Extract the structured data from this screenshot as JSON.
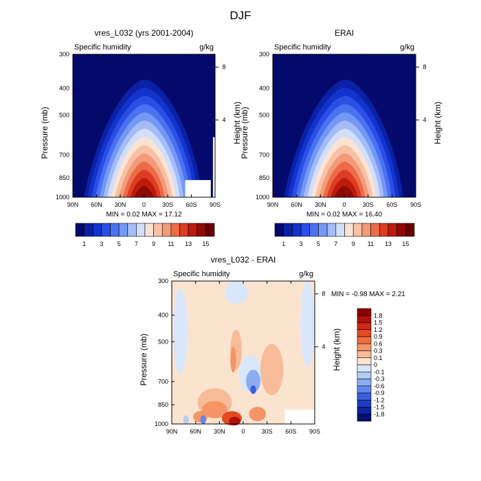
{
  "figure_title": "DJF",
  "chart_data": [
    {
      "type": "heatmap",
      "title": "vres_L032 (yrs 2001-2004)",
      "subtitle_left": "Specific humidity",
      "subtitle_right": "g/kg",
      "ylabel": "Pressure (mb)",
      "ylabel_right": "Height (km)",
      "x_ticks": [
        "90N",
        "60N",
        "30N",
        "0",
        "30S",
        "60S",
        "90S"
      ],
      "y_ticks": [
        "300",
        "400",
        "500",
        "700",
        "850",
        "1000"
      ],
      "y_ticks_right": [
        "8",
        "4"
      ],
      "ylim": [
        1000,
        300
      ],
      "min_max_text": "MIN =  0.02  MAX =  17.12",
      "colorbar": {
        "orientation": "horizontal",
        "labels": [
          "1",
          "3",
          "5",
          "7",
          "9",
          "11",
          "13",
          "15"
        ],
        "colors": [
          "#040a6b",
          "#0a21a6",
          "#1233cc",
          "#2a4ee6",
          "#4a72f0",
          "#7398f5",
          "#a4bcf8",
          "#d2dffb",
          "#fbe3d3",
          "#f8c0a5",
          "#f39a79",
          "#ec6c4a",
          "#dc3c22",
          "#bb1a0c",
          "#8e0b04",
          "#680000"
        ]
      }
    },
    {
      "type": "heatmap",
      "title": "ERAI",
      "subtitle_left": "Specific humidity",
      "subtitle_right": "g/kg",
      "ylabel": "Pressure (mb)",
      "ylabel_right": "Height (km)",
      "x_ticks": [
        "90N",
        "60N",
        "30N",
        "0",
        "30S",
        "60S",
        "90S"
      ],
      "y_ticks": [
        "300",
        "400",
        "500",
        "700",
        "850",
        "1000"
      ],
      "y_ticks_right": [
        "8",
        "4"
      ],
      "ylim": [
        1000,
        300
      ],
      "min_max_text": "MIN =  0.02  MAX =  16.40",
      "colorbar": {
        "orientation": "horizontal",
        "labels": [
          "1",
          "3",
          "5",
          "7",
          "9",
          "11",
          "13",
          "15"
        ],
        "colors": [
          "#040a6b",
          "#0a21a6",
          "#1233cc",
          "#2a4ee6",
          "#4a72f0",
          "#7398f5",
          "#a4bcf8",
          "#d2dffb",
          "#fbe3d3",
          "#f8c0a5",
          "#f39a79",
          "#ec6c4a",
          "#dc3c22",
          "#bb1a0c",
          "#8e0b04",
          "#680000"
        ]
      }
    },
    {
      "type": "heatmap",
      "title": "vres_L032 - ERAI",
      "subtitle_left": "Specific humidity",
      "subtitle_right": "g/kg",
      "ylabel": "Pressure (mb)",
      "ylabel_right": "Height (km)",
      "x_ticks": [
        "90N",
        "60N",
        "30N",
        "0",
        "30S",
        "60S",
        "90S"
      ],
      "y_ticks": [
        "300",
        "400",
        "500",
        "700",
        "850",
        "1000"
      ],
      "y_ticks_right": [
        "8",
        "4"
      ],
      "ylim": [
        1000,
        300
      ],
      "min_max_text": "MIN = -0.98  MAX =  2.21",
      "colorbar": {
        "orientation": "vertical",
        "labels": [
          "1.8",
          "1.5",
          "1.2",
          "0.9",
          "0.6",
          "0.3",
          "0.1",
          "0",
          "-0.1",
          "-0.3",
          "-0.6",
          "-0.9",
          "-1.2",
          "-1.5",
          "-1.8"
        ],
        "colors": [
          "#8b0000",
          "#b01008",
          "#cc2a12",
          "#e24a22",
          "#ef6d3f",
          "#f59567",
          "#f8bb98",
          "#fbe4cf",
          "#d8e7fb",
          "#b3cdf7",
          "#8cacf2",
          "#6287ea",
          "#3a5fe0",
          "#1c3dc8",
          "#0d23a0",
          "#050f70"
        ]
      }
    }
  ]
}
